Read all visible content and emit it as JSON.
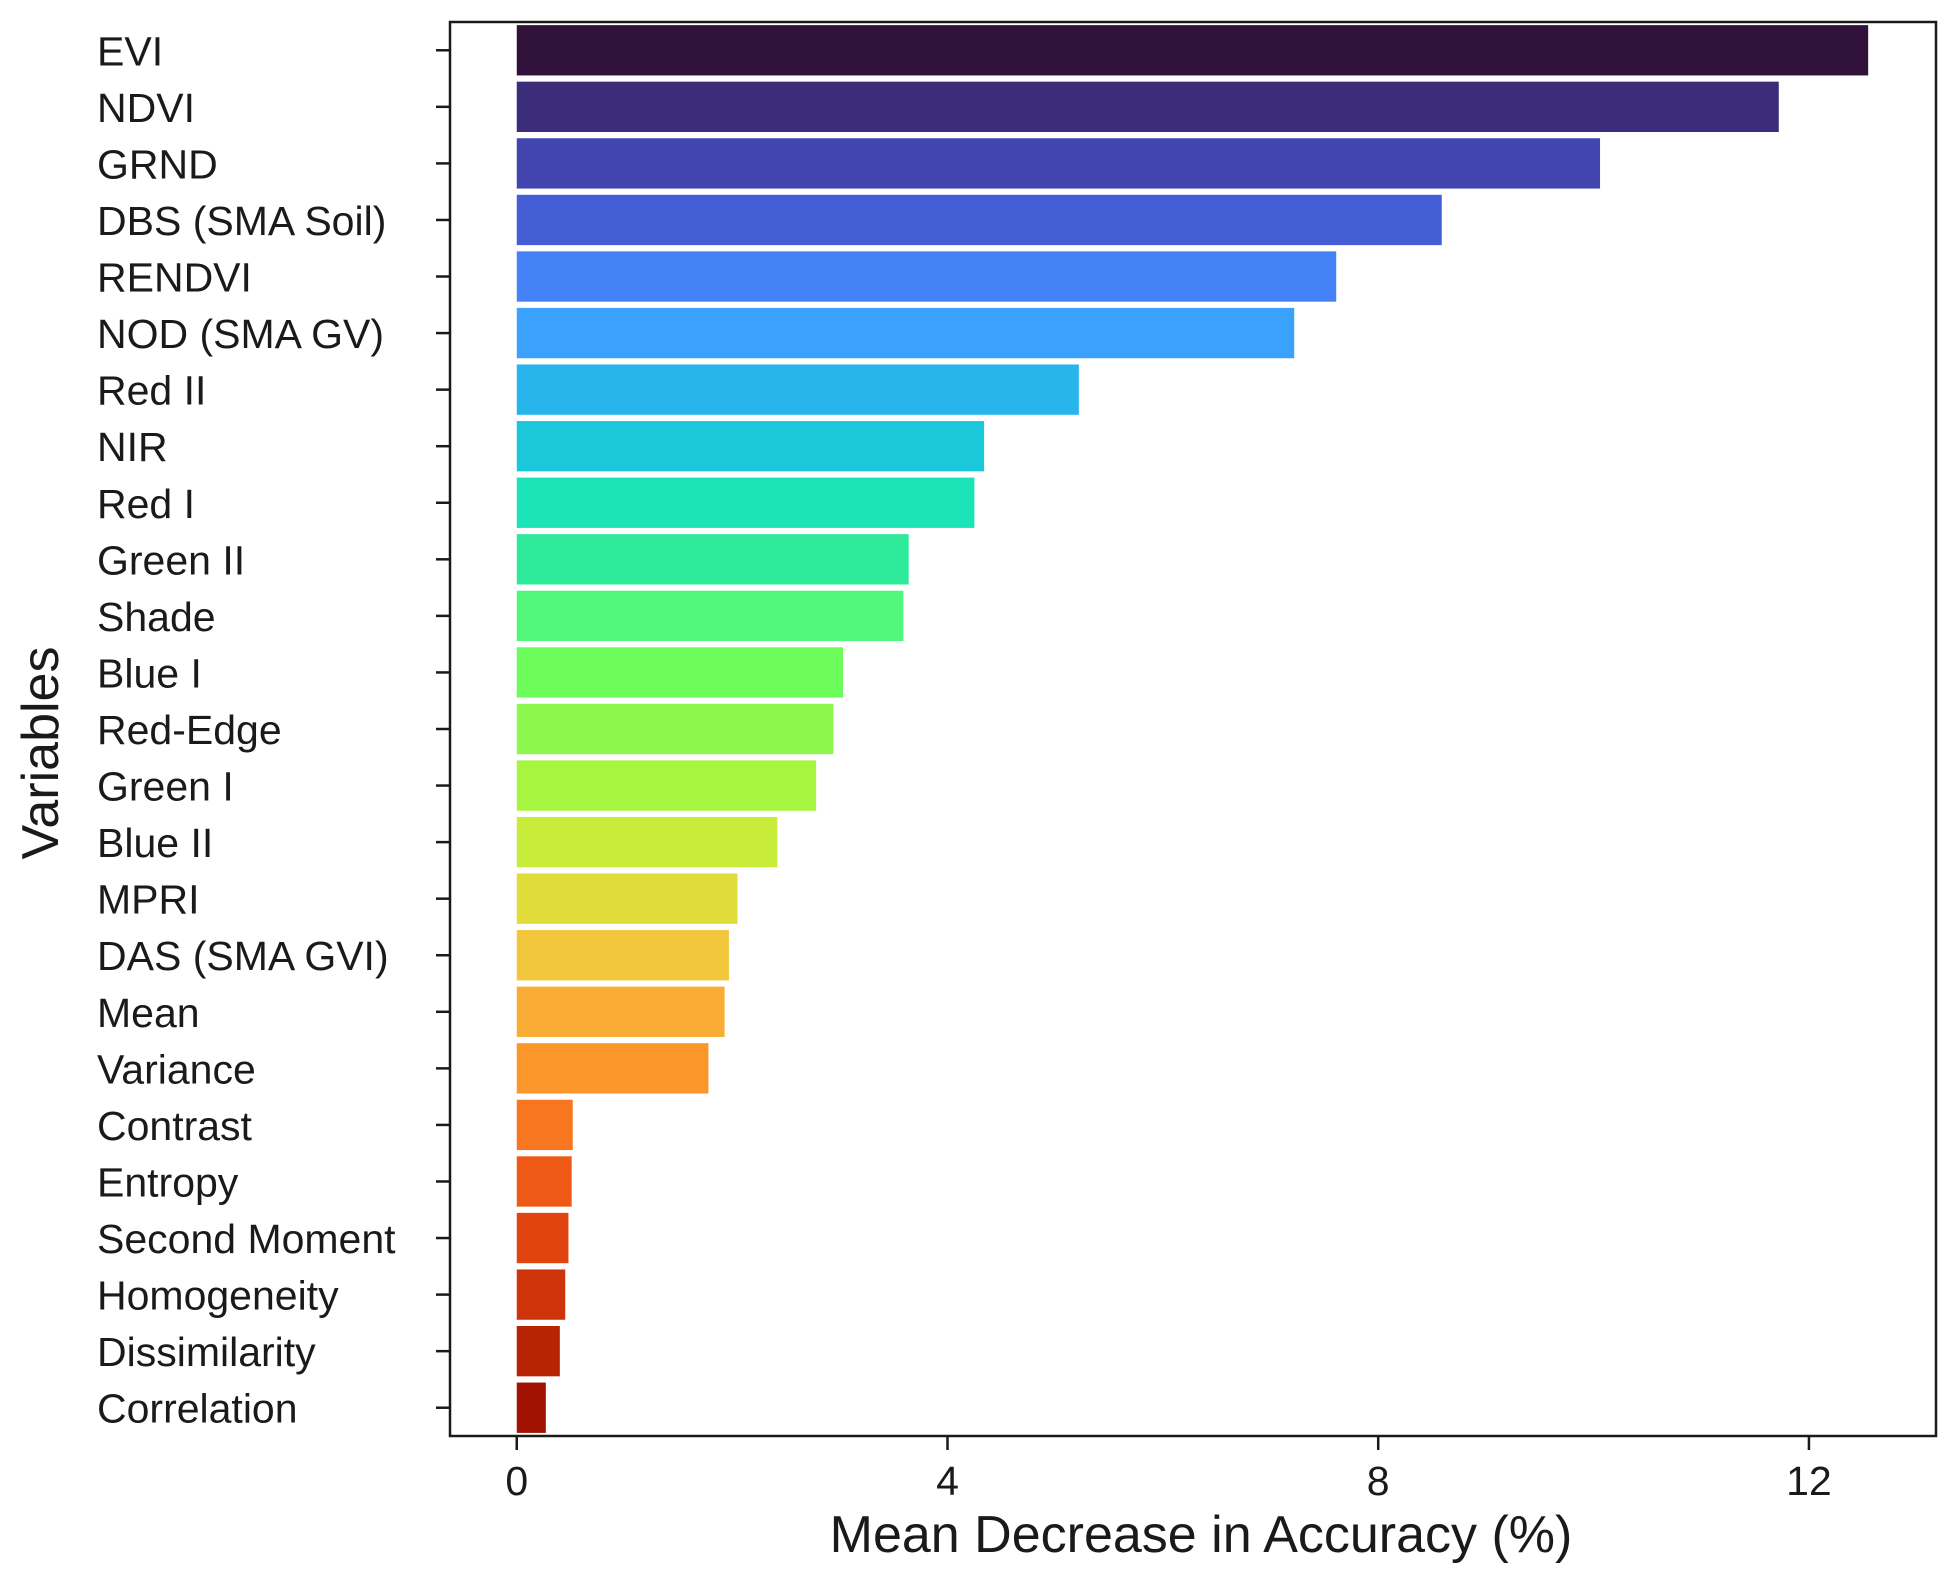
{
  "chart_data": {
    "type": "bar",
    "orientation": "horizontal",
    "title": "",
    "xlabel": "Mean Decrease in Accuracy (%)",
    "ylabel": "Variables",
    "xlim": [
      -0.62,
      13.18
    ],
    "xticks": [
      0,
      4,
      8,
      12
    ],
    "grid": false,
    "legend": "none",
    "categories": [
      "EVI",
      "NDVI",
      "GRND",
      "DBS (SMA Soil)",
      "RENDVI",
      "NOD (SMA GV)",
      "Red II",
      "NIR",
      "Red I",
      "Green II",
      "Shade",
      "Blue I",
      "Red-Edge",
      "Green I",
      "Blue II",
      "MPRI",
      "DAS (SMA GVI)",
      "Mean",
      "Variance",
      "Contrast",
      "Entropy",
      "Second Moment",
      "Homogeneity",
      "Dissimilarity",
      "Correlation"
    ],
    "values": [
      12.55,
      11.72,
      10.06,
      8.59,
      7.61,
      7.22,
      5.22,
      4.34,
      4.25,
      3.64,
      3.59,
      3.03,
      2.94,
      2.78,
      2.42,
      2.05,
      1.97,
      1.93,
      1.78,
      0.52,
      0.51,
      0.48,
      0.45,
      0.4,
      0.27
    ],
    "colors": [
      "#30123b",
      "#3c2d7b",
      "#4145ad",
      "#455ed6",
      "#4582f7",
      "#3aa1fc",
      "#27b5ec",
      "#1ac8d9",
      "#1de4b8",
      "#2eea9a",
      "#50f77a",
      "#6dfd5a",
      "#8ef74b",
      "#a8f53f",
      "#c7ec3a",
      "#e0dc39",
      "#f2c63a",
      "#f9ad34",
      "#fb962b",
      "#f7761f",
      "#ee5a16",
      "#e1440e",
      "#cf330a",
      "#b82205",
      "#a21202"
    ]
  }
}
